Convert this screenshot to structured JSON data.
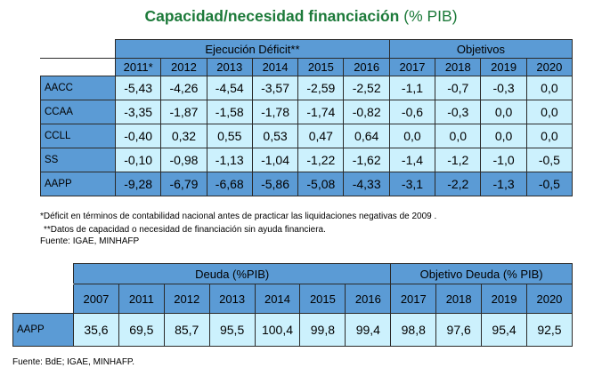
{
  "title": {
    "main": "Capacidad/necesidad financiación",
    "unit": "(% PIB)"
  },
  "table1": {
    "group_exec": "Ejecución Déficit**",
    "group_obj": "Objetivos",
    "years": [
      "2011*",
      "2012",
      "2013",
      "2014",
      "2015",
      "2016",
      "2017",
      "2018",
      "2019",
      "2020"
    ],
    "rows": [
      {
        "label": "AACC",
        "values": [
          "-5,43",
          "-4,26",
          "-4,54",
          "-3,57",
          "-2,59",
          "-2,52",
          "-1,1",
          "-0,7",
          "-0,3",
          "0,0"
        ]
      },
      {
        "label": "CCAA",
        "values": [
          "-3,35",
          "-1,87",
          "-1,58",
          "-1,78",
          "-1,74",
          "-0,82",
          "-0,6",
          "-0,3",
          "0,0",
          "0,0"
        ]
      },
      {
        "label": "CCLL",
        "values": [
          "-0,40",
          "0,32",
          "0,55",
          "0,53",
          "0,47",
          "0,64",
          "0,0",
          "0,0",
          "0,0",
          "0,0"
        ]
      },
      {
        "label": "SS",
        "values": [
          "-0,10",
          "-0,98",
          "-1,13",
          "-1,04",
          "-1,22",
          "-1,62",
          "-1,4",
          "-1,2",
          "-1,0",
          "-0,5"
        ]
      },
      {
        "label": "AAPP",
        "values": [
          "-9,28",
          "-6,79",
          "-6,68",
          "-5,86",
          "-5,08",
          "-4,33",
          "-3,1",
          "-2,2",
          "-1,3",
          "-0,5"
        ]
      }
    ]
  },
  "notes": {
    "n1": "*Déficit en términos de contabilidad nacional  antes de practicar las liquidaciones negativas  de 2009 .",
    "n2": "**Datos de capacidad o necesidad de financiación sin ayuda financiera.",
    "source1": "Fuente: IGAE, MINHAFP",
    "source2": "Fuente: BdE; IGAE, MINHAFP."
  },
  "table2": {
    "group_debt": "Deuda (%PIB)",
    "group_obj": "Objetivo Deuda (% PIB)",
    "years": [
      "2007",
      "2011",
      "2012",
      "2013",
      "2014",
      "2015",
      "2016",
      "2017",
      "2018",
      "2019",
      "2020"
    ],
    "rows": [
      {
        "label": "AAPP",
        "values": [
          "35,6",
          "69,5",
          "85,7",
          "95,5",
          "100,4",
          "99,8",
          "99,4",
          "98,8",
          "97,6",
          "95,4",
          "92,5"
        ]
      }
    ]
  }
}
